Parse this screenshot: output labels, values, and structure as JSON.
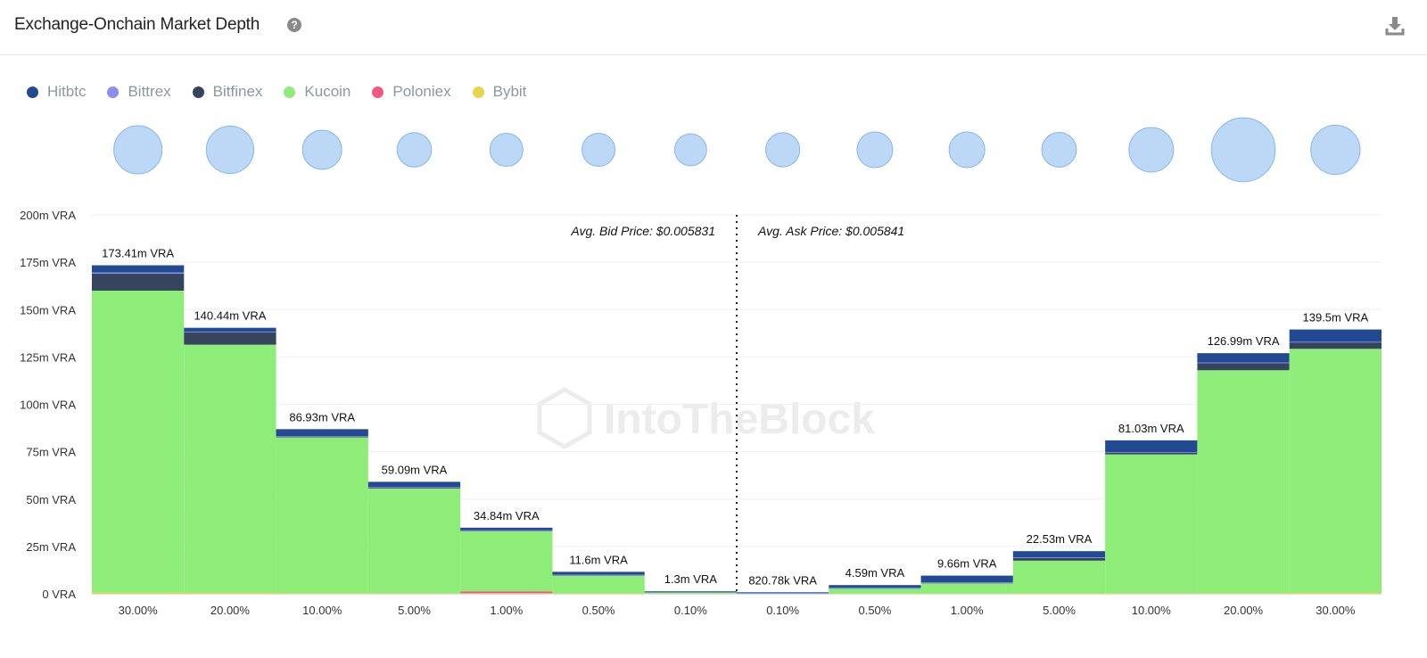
{
  "header": {
    "title": "Exchange-Onchain Market Depth",
    "help_icon": "question-circle-icon",
    "download_icon": "download-icon"
  },
  "legend": [
    {
      "name": "Hitbtc",
      "color": "#224a93"
    },
    {
      "name": "Bittrex",
      "color": "#8c8ef0"
    },
    {
      "name": "Bitfinex",
      "color": "#36455e"
    },
    {
      "name": "Kucoin",
      "color": "#8eed78"
    },
    {
      "name": "Poloniex",
      "color": "#f05a82"
    },
    {
      "name": "Bybit",
      "color": "#e8d44d"
    }
  ],
  "chart_data": {
    "type": "bar",
    "stacked": true,
    "title": "Exchange-Onchain Market Depth",
    "ylim": [
      0,
      200
    ],
    "yticks": [
      "0 VRA",
      "25m VRA",
      "50m VRA",
      "75m VRA",
      "100m VRA",
      "125m VRA",
      "150m VRA",
      "175m VRA",
      "200m VRA"
    ],
    "categories": [
      "30.00%",
      "20.00%",
      "10.00%",
      "5.00%",
      "1.00%",
      "0.50%",
      "0.10%",
      "0.10%",
      "0.50%",
      "1.00%",
      "5.00%",
      "10.00%",
      "20.00%",
      "30.00%"
    ],
    "sides": [
      "bid",
      "bid",
      "bid",
      "bid",
      "bid",
      "bid",
      "bid",
      "ask",
      "ask",
      "ask",
      "ask",
      "ask",
      "ask",
      "ask"
    ],
    "total_labels": [
      "173.41m VRA",
      "140.44m VRA",
      "86.93m VRA",
      "59.09m VRA",
      "34.84m VRA",
      "11.6m VRA",
      "1.3m VRA",
      "820.78k VRA",
      "4.59m VRA",
      "9.66m VRA",
      "22.53m VRA",
      "81.03m VRA",
      "126.99m VRA",
      "139.5m VRA"
    ],
    "series": [
      {
        "name": "Bybit",
        "color": "#e8d44d",
        "values": [
          0.6,
          0.5,
          0.4,
          0.3,
          0.3,
          0.2,
          0.1,
          0.1,
          0.1,
          0.1,
          0.2,
          0.3,
          0.4,
          0.5
        ]
      },
      {
        "name": "Poloniex",
        "color": "#f05a82",
        "values": [
          0,
          0,
          0,
          0,
          1.0,
          0,
          0,
          0,
          0,
          0,
          0,
          0,
          0,
          0
        ]
      },
      {
        "name": "Kucoin",
        "color": "#8eed78",
        "values": [
          159.4,
          131.0,
          82.2,
          55.3,
          31.8,
          9.4,
          0.8,
          0.2,
          2.9,
          5.4,
          17.3,
          73.3,
          117.6,
          128.8
        ]
      },
      {
        "name": "Bitfinex",
        "color": "#36455e",
        "values": [
          9.0,
          6.6,
          0.6,
          0.6,
          0.3,
          0.4,
          0.1,
          0.0,
          0.1,
          0.4,
          1.4,
          1.0,
          3.8,
          3.5
        ]
      },
      {
        "name": "Bittrex",
        "color": "#8c8ef0",
        "values": [
          0.6,
          0.3,
          0.1,
          0.1,
          0.1,
          0.1,
          0.1,
          0.1,
          0.1,
          0.1,
          0.3,
          0.2,
          0.3,
          0.2
        ]
      },
      {
        "name": "Hitbtc",
        "color": "#224a93",
        "values": [
          3.8,
          2.0,
          3.6,
          2.8,
          1.4,
          1.5,
          0.2,
          0.4,
          1.4,
          3.6,
          3.3,
          6.2,
          4.9,
          6.5
        ]
      }
    ],
    "bubble_values": [
      1.0,
      0.97,
      0.66,
      0.51,
      0.47,
      0.47,
      0.44,
      0.5,
      0.55,
      0.55,
      0.52,
      0.86,
      1.76,
      1.05
    ],
    "avg_bid_label": "Avg. Bid Price: $0.005831",
    "avg_ask_label": "Avg. Ask Price: $0.005841",
    "watermark": "IntoTheBlock",
    "bubble_color": "#bcd8f6",
    "bubble_stroke": "#86b7ea"
  }
}
